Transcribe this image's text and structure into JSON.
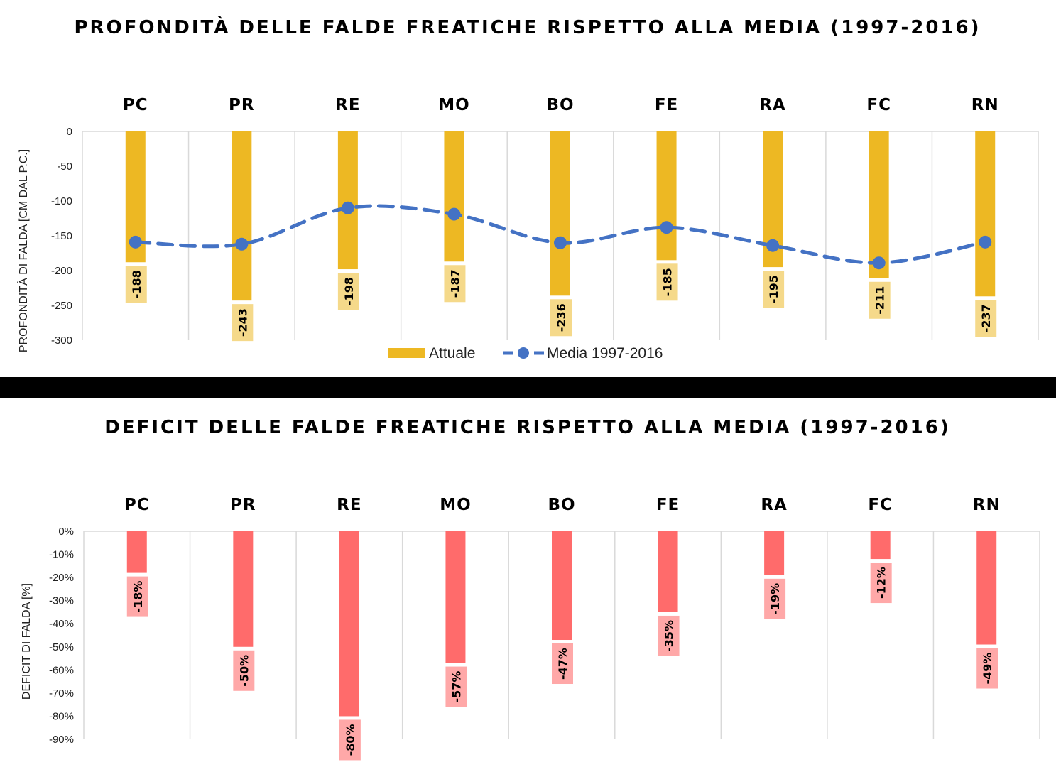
{
  "chart_data": [
    {
      "type": "bar",
      "title": "PROFONDITÀ DELLE FALDE FREATICHE RISPETTO ALLA MEDIA (1997-2016)",
      "ylabel": "PROFONDITÀ DI FALDA [CM DAL P.C.]",
      "categories": [
        "PC",
        "PR",
        "RE",
        "MO",
        "BO",
        "FE",
        "RA",
        "FC",
        "RN"
      ],
      "ylim": [
        -300,
        0
      ],
      "yticks": [
        "0",
        "-50",
        "-100",
        "-150",
        "-200",
        "-250",
        "-300"
      ],
      "ytick_values": [
        0,
        -50,
        -100,
        -150,
        -200,
        -250,
        -300
      ],
      "series": [
        {
          "name": "Attuale",
          "kind": "bar",
          "color": "#EDB823",
          "values": [
            -188,
            -243,
            -198,
            -187,
            -236,
            -185,
            -195,
            -211,
            -237
          ],
          "labels": [
            "-188",
            "-243",
            "-198",
            "-187",
            "-236",
            "-185",
            "-195",
            "-211",
            "-237"
          ]
        },
        {
          "name": "Media 1997-2016",
          "kind": "line-dashed",
          "color": "#4472C4",
          "values": [
            -159,
            -162,
            -110,
            -119,
            -160,
            -138,
            -164,
            -189,
            -159
          ]
        }
      ],
      "label_bg": "#F5D98A",
      "grid": "vertical-category-separators",
      "legend": "bottom"
    },
    {
      "type": "bar",
      "title": "DEFICIT DELLE FALDE FREATICHE RISPETTO ALLA MEDIA (1997-2016)",
      "ylabel": "DEFICIT DI FALDA [%]",
      "categories": [
        "PC",
        "PR",
        "RE",
        "MO",
        "BO",
        "FE",
        "RA",
        "FC",
        "RN"
      ],
      "ylim": [
        -90,
        0
      ],
      "yticks": [
        "0%",
        "-10%",
        "-20%",
        "-30%",
        "-40%",
        "-50%",
        "-60%",
        "-70%",
        "-80%",
        "-90%"
      ],
      "ytick_values": [
        0,
        -10,
        -20,
        -30,
        -40,
        -50,
        -60,
        -70,
        -80,
        -90
      ],
      "series": [
        {
          "name": "",
          "kind": "bar",
          "color": "#FF6B6B",
          "values": [
            -18,
            -50,
            -80,
            -57,
            -47,
            -35,
            -19,
            -12,
            -49
          ],
          "labels": [
            "-18%",
            "-50%",
            "-80%",
            "-57%",
            "-47%",
            "-35%",
            "-19%",
            "-12%",
            "-49%"
          ]
        }
      ],
      "label_bg": "#FFA8A8",
      "grid": "vertical-category-separators",
      "legend": "none"
    }
  ],
  "divider_color": "#000000"
}
